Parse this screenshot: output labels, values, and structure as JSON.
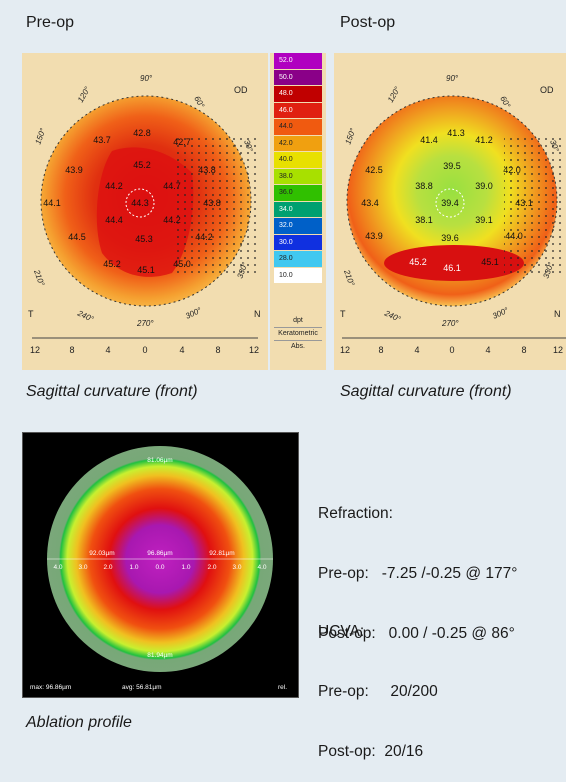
{
  "pre_op": {
    "header": "Pre-op",
    "caption": "Sagittal curvature (front)",
    "eye": "OD",
    "angles": [
      "90°",
      "120°",
      "60°",
      "150°",
      "30°",
      "210°",
      "330°",
      "240°",
      "270°",
      "300°"
    ],
    "sides": {
      "left": "T",
      "right": "N"
    },
    "ruler": [
      "12",
      "8",
      "4",
      "0",
      "4",
      "8",
      "12"
    ],
    "readings": [
      {
        "v": "42.8"
      },
      {
        "v": "43.7"
      },
      {
        "v": "42.7"
      },
      {
        "v": "43.9"
      },
      {
        "v": "45.2"
      },
      {
        "v": "43.8"
      },
      {
        "v": "44.2"
      },
      {
        "v": "44.7"
      },
      {
        "v": "44.1"
      },
      {
        "v": "44.3"
      },
      {
        "v": "43.8"
      },
      {
        "v": "44.4"
      },
      {
        "v": "44.2"
      },
      {
        "v": "44.5"
      },
      {
        "v": "45.3"
      },
      {
        "v": "44.2"
      },
      {
        "v": "45.2"
      },
      {
        "v": "45.1"
      },
      {
        "v": "45.0"
      }
    ]
  },
  "post_op": {
    "header": "Post-op",
    "caption": "Sagittal curvature (front)",
    "eye": "OD",
    "angles": [
      "90°",
      "120°",
      "60°",
      "150°",
      "30°",
      "210°",
      "330°",
      "240°",
      "270°",
      "300°"
    ],
    "sides": {
      "left": "T",
      "right": "N"
    },
    "ruler": [
      "12",
      "8",
      "4",
      "0",
      "4",
      "8",
      "12"
    ],
    "readings": [
      {
        "v": "41.4"
      },
      {
        "v": "41.3"
      },
      {
        "v": "41.2"
      },
      {
        "v": "42.5"
      },
      {
        "v": "39.5"
      },
      {
        "v": "42.0"
      },
      {
        "v": "38.8"
      },
      {
        "v": "39.0"
      },
      {
        "v": "43.4"
      },
      {
        "v": "39.4"
      },
      {
        "v": "43.1"
      },
      {
        "v": "38.1"
      },
      {
        "v": "39.1"
      },
      {
        "v": "43.9"
      },
      {
        "v": "39.6"
      },
      {
        "v": "44.0"
      },
      {
        "v": "45.2"
      },
      {
        "v": "46.1"
      },
      {
        "v": "45.1"
      }
    ]
  },
  "scale": {
    "entries": [
      "52.0",
      "50.0",
      "48.0",
      "46.0",
      "44.0",
      "42.0",
      "40.0",
      "38.0",
      "36.0",
      "34.0",
      "32.0",
      "30.0",
      "28.0",
      "10.0"
    ],
    "colors": [
      "#b000c0",
      "#8a0088",
      "#c00000",
      "#e02010",
      "#f05a10",
      "#f0a010",
      "#e8e000",
      "#a8e000",
      "#30c000",
      "#00a070",
      "#0060c8",
      "#1030e0",
      "#40c8f0",
      "#ffffff"
    ],
    "footer": [
      "dpt",
      "Keratometric",
      "Abs."
    ]
  },
  "ablation": {
    "caption": "Ablation profile",
    "top_label": "81.06µm",
    "bottom_label": "81.94µm",
    "left_label": "92.03µm",
    "right_label": "92.81µm",
    "center_label": "96.86µm",
    "axis_ticks": [
      "4.0",
      "3.0",
      "2.0",
      "1.0",
      "0.0",
      "1.0",
      "2.0",
      "3.0",
      "4.0"
    ],
    "footer_left": "max: 96.86µm",
    "footer_mid": "avg: 56.81µm",
    "footer_right": "rel."
  },
  "info": {
    "refraction_title": "Refraction:",
    "refraction_pre": "Pre-op:   -7.25 /-0.25 @ 177°",
    "refraction_post": "Post-op:   0.00 / -0.25 @ 86°",
    "ucva_title": "UCVA:",
    "ucva_pre": "Pre-op:     20/200",
    "ucva_post": "Post-op:  20/16"
  }
}
